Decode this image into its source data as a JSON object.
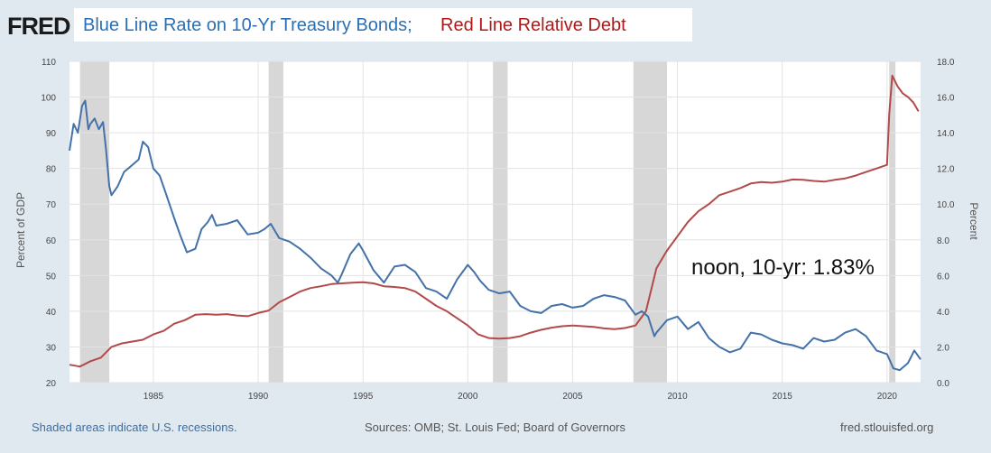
{
  "header": {
    "logo": "FRED",
    "title_blue": "Blue Line Rate on 10-Yr Treasury Bonds;",
    "title_red": "Red Line Relative Debt"
  },
  "annotation": "noon, 10-yr: 1.83%",
  "footer": {
    "recession_note": "Shaded areas indicate U.S. recessions.",
    "sources": "Sources: OMB; St. Louis Fed; Board of Governors",
    "site": "fred.stlouisfed.org"
  },
  "chart_data": {
    "type": "line",
    "title": "",
    "xlim": [
      1981,
      2021.6
    ],
    "x_ticks": [
      1985,
      1990,
      1995,
      2000,
      2005,
      2010,
      2015,
      2020
    ],
    "y_left": {
      "label": "Percent of GDP",
      "lim": [
        20,
        110
      ],
      "ticks": [
        20,
        30,
        40,
        50,
        60,
        70,
        80,
        90,
        100,
        110
      ]
    },
    "y_right": {
      "label": "Percent",
      "lim": [
        0,
        18
      ],
      "ticks": [
        "0.0",
        "2.0",
        "4.0",
        "6.0",
        "8.0",
        "10.0",
        "12.0",
        "14.0",
        "16.0",
        "18.0"
      ]
    },
    "grid": true,
    "recessions": [
      [
        1981.5,
        1982.9
      ],
      [
        1990.5,
        1991.2
      ],
      [
        2001.2,
        2001.9
      ],
      [
        2007.9,
        2009.5
      ],
      [
        2020.1,
        2020.4
      ]
    ],
    "series": [
      {
        "color": "#b24a4a",
        "axis": "left",
        "x": [
          1981,
          1981.5,
          1982,
          1982.5,
          1983,
          1983.5,
          1984,
          1984.5,
          1985,
          1985.5,
          1986,
          1986.5,
          1987,
          1987.5,
          1988,
          1988.5,
          1989,
          1989.5,
          1990,
          1990.5,
          1991,
          1991.5,
          1992,
          1992.5,
          1993,
          1993.5,
          1994,
          1994.5,
          1995,
          1995.5,
          1996,
          1996.5,
          1997,
          1997.5,
          1998,
          1998.5,
          1999,
          1999.5,
          2000,
          2000.5,
          2001,
          2001.5,
          2002,
          2002.5,
          2003,
          2003.5,
          2004,
          2004.5,
          2005,
          2005.5,
          2006,
          2006.5,
          2007,
          2007.5,
          2008,
          2008.5,
          2009,
          2009.5,
          2010,
          2010.5,
          2011,
          2011.5,
          2012,
          2012.5,
          2013,
          2013.5,
          2014,
          2014.5,
          2015,
          2015.5,
          2016,
          2016.5,
          2017,
          2017.5,
          2018,
          2018.5,
          2019,
          2019.5,
          2020,
          2020.1,
          2020.25,
          2020.5,
          2020.75,
          2021,
          2021.25,
          2021.5
        ],
        "y": [
          25,
          24.5,
          26,
          27,
          30,
          31,
          31.5,
          32,
          33.5,
          34.5,
          36.5,
          37.5,
          39,
          39.2,
          39,
          39.2,
          38.8,
          38.6,
          39.5,
          40.2,
          42.5,
          44,
          45.5,
          46.5,
          47,
          47.6,
          47.8,
          48,
          48.1,
          47.8,
          47,
          46.8,
          46.5,
          45.5,
          43.5,
          41.5,
          40,
          38,
          36,
          33.5,
          32.5,
          32.3,
          32.5,
          33,
          34,
          34.8,
          35.4,
          35.8,
          36,
          35.8,
          35.6,
          35.2,
          35,
          35.3,
          36,
          40,
          52,
          57,
          61,
          65,
          68,
          70,
          72.5,
          73.5,
          74.5,
          75.8,
          76.2,
          76,
          76.3,
          76.9,
          76.8,
          76.5,
          76.3,
          76.8,
          77.2,
          78,
          79,
          80,
          81,
          95,
          106,
          103,
          101,
          100,
          98.5,
          96
        ]
      },
      {
        "color": "#4472a8",
        "axis": "right",
        "x": [
          1981,
          1981.2,
          1981.4,
          1981.6,
          1981.75,
          1981.9,
          1982,
          1982.2,
          1982.4,
          1982.6,
          1982.75,
          1982.9,
          1983,
          1983.3,
          1983.6,
          1984,
          1984.3,
          1984.5,
          1984.75,
          1985,
          1985.3,
          1985.6,
          1986,
          1986.3,
          1986.6,
          1987,
          1987.3,
          1987.6,
          1987.8,
          1988,
          1988.5,
          1989,
          1989.5,
          1990,
          1990.3,
          1990.6,
          1991,
          1991.5,
          1992,
          1992.5,
          1993,
          1993.5,
          1993.8,
          1994,
          1994.4,
          1994.8,
          1995,
          1995.5,
          1996,
          1996.5,
          1997,
          1997.5,
          1998,
          1998.5,
          1999,
          1999.5,
          2000,
          2000.3,
          2000.6,
          2001,
          2001.5,
          2002,
          2002.5,
          2003,
          2003.5,
          2004,
          2004.5,
          2005,
          2005.5,
          2006,
          2006.5,
          2007,
          2007.5,
          2008,
          2008.3,
          2008.6,
          2008.9,
          2009,
          2009.5,
          2010,
          2010.5,
          2011,
          2011.5,
          2012,
          2012.5,
          2013,
          2013.5,
          2014,
          2014.5,
          2015,
          2015.5,
          2016,
          2016.5,
          2017,
          2017.5,
          2018,
          2018.5,
          2019,
          2019.5,
          2020,
          2020.3,
          2020.6,
          2021,
          2021.3,
          2021.6
        ],
        "y": [
          13,
          14.5,
          14,
          15.5,
          15.8,
          14.2,
          14.5,
          14.8,
          14.2,
          14.6,
          13,
          11,
          10.5,
          11,
          11.8,
          12.2,
          12.5,
          13.5,
          13.2,
          12,
          11.6,
          10.6,
          9.2,
          8.2,
          7.3,
          7.5,
          8.6,
          9,
          9.4,
          8.8,
          8.9,
          9.1,
          8.3,
          8.4,
          8.6,
          8.9,
          8.1,
          7.9,
          7.5,
          7,
          6.4,
          6,
          5.6,
          6.1,
          7.2,
          7.8,
          7.4,
          6.3,
          5.6,
          6.5,
          6.6,
          6.2,
          5.3,
          5.1,
          4.7,
          5.8,
          6.6,
          6.2,
          5.7,
          5.2,
          5,
          5.1,
          4.3,
          4,
          3.9,
          4.3,
          4.4,
          4.2,
          4.3,
          4.7,
          4.9,
          4.8,
          4.6,
          3.8,
          4,
          3.7,
          2.6,
          2.8,
          3.5,
          3.7,
          3,
          3.4,
          2.5,
          2,
          1.7,
          1.9,
          2.8,
          2.7,
          2.4,
          2.2,
          2.1,
          1.9,
          2.5,
          2.3,
          2.4,
          2.8,
          3,
          2.6,
          1.8,
          1.6,
          0.8,
          0.7,
          1.1,
          1.8,
          1.3
        ]
      }
    ]
  }
}
